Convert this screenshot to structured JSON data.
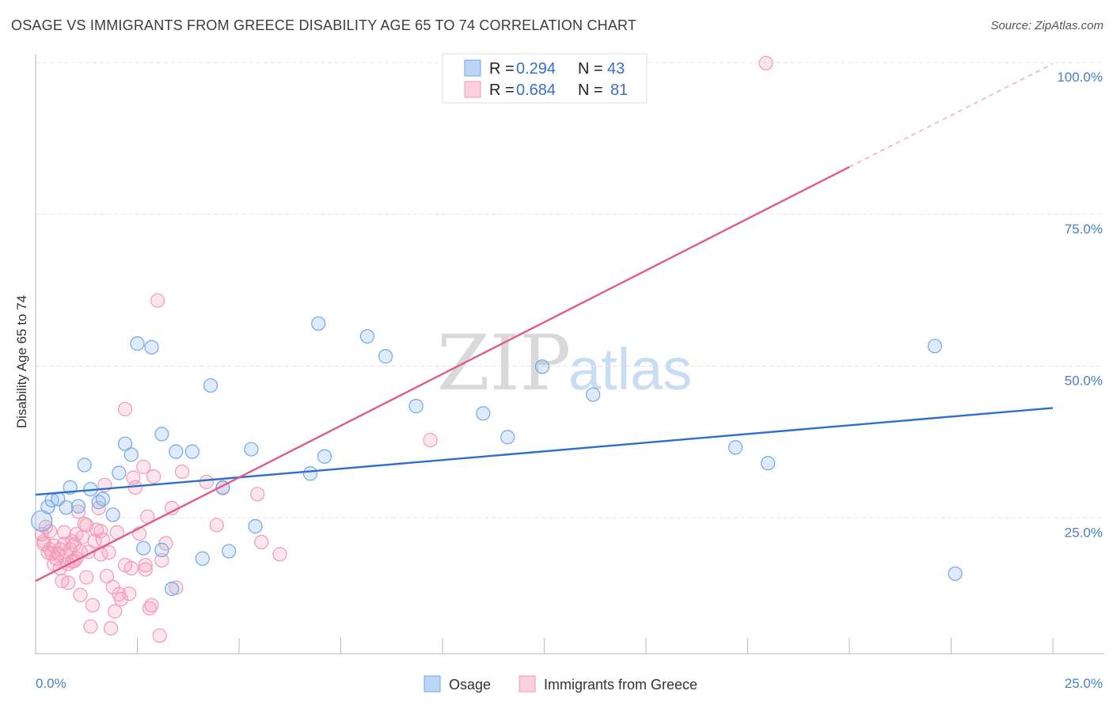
{
  "header": {
    "title": "OSAGE VS IMMIGRANTS FROM GREECE DISABILITY AGE 65 TO 74 CORRELATION CHART",
    "source": "Source: ZipAtlas.com"
  },
  "watermark": {
    "zip": "ZIP",
    "atlas": "atlas"
  },
  "stats": [
    {
      "r_label": "R =",
      "r_value": "0.294",
      "n_label": "N =",
      "n_value": "43"
    },
    {
      "r_label": "R =",
      "r_value": "0.684",
      "n_label": "N =",
      "n_value": "81"
    }
  ],
  "chart_data": {
    "type": "scatter",
    "title": "OSAGE VS IMMIGRANTS FROM GREECE DISABILITY AGE 65 TO 74 CORRELATION CHART",
    "xlabel": "",
    "ylabel": "Disability Age 65 to 74",
    "xlim": [
      0,
      25
    ],
    "ylim": [
      0,
      100
    ],
    "x_tick_labels": [
      "0.0%",
      "25.0%"
    ],
    "y_tick_labels": [
      "25.0%",
      "50.0%",
      "75.0%",
      "100.0%"
    ],
    "y_ticks": [
      25,
      50,
      75,
      100
    ],
    "grid": true,
    "legend_position": "bottom",
    "colors": {
      "osage": "#6fa8e8",
      "greece": "#f19bb7",
      "osage_line": "#2f6fca",
      "greece_line": "#e05a87",
      "tick": "#4a7fc1"
    },
    "series": [
      {
        "name": "Osage",
        "r": 0.294,
        "n": 43,
        "trend": {
          "x": [
            0,
            25
          ],
          "y": [
            28.8,
            43.1
          ]
        },
        "points": [
          [
            0.15,
            24.5
          ],
          [
            0.3,
            26.8
          ],
          [
            0.4,
            27.9
          ],
          [
            0.55,
            28.1
          ],
          [
            0.75,
            26.7
          ],
          [
            0.85,
            30.0
          ],
          [
            1.05,
            26.9
          ],
          [
            1.2,
            33.7
          ],
          [
            1.35,
            29.7
          ],
          [
            1.55,
            27.6
          ],
          [
            1.65,
            28.1
          ],
          [
            1.9,
            25.5
          ],
          [
            2.05,
            32.4
          ],
          [
            2.2,
            37.2
          ],
          [
            2.35,
            35.4
          ],
          [
            2.5,
            53.7
          ],
          [
            2.65,
            20.0
          ],
          [
            2.85,
            53.1
          ],
          [
            3.1,
            38.8
          ],
          [
            3.1,
            19.7
          ],
          [
            3.35,
            13.3
          ],
          [
            3.45,
            35.9
          ],
          [
            3.85,
            35.9
          ],
          [
            4.1,
            18.3
          ],
          [
            4.3,
            46.8
          ],
          [
            4.6,
            30.0
          ],
          [
            4.75,
            19.5
          ],
          [
            5.3,
            36.3
          ],
          [
            5.4,
            23.6
          ],
          [
            6.75,
            32.3
          ],
          [
            6.95,
            57.0
          ],
          [
            7.1,
            35.1
          ],
          [
            8.15,
            54.9
          ],
          [
            8.6,
            51.6
          ],
          [
            9.35,
            43.4
          ],
          [
            11.0,
            42.2
          ],
          [
            11.6,
            38.3
          ],
          [
            12.45,
            49.9
          ],
          [
            13.7,
            45.3
          ],
          [
            17.2,
            36.6
          ],
          [
            18.0,
            34.0
          ],
          [
            22.1,
            53.3
          ],
          [
            22.6,
            15.8
          ]
        ]
      },
      {
        "name": "Immigrants from Greece",
        "r": 0.684,
        "n": 81,
        "trend": {
          "x": [
            0,
            20
          ],
          "y": [
            14.6,
            82.8
          ]
        },
        "trend_dashed": {
          "x": [
            20,
            25
          ],
          "y": [
            82.8,
            99.8
          ]
        },
        "points": [
          [
            0.15,
            22.3
          ],
          [
            0.2,
            21.1
          ],
          [
            0.2,
            20.7
          ],
          [
            0.25,
            23.5
          ],
          [
            0.3,
            19.3
          ],
          [
            0.35,
            22.8
          ],
          [
            0.35,
            19.8
          ],
          [
            0.4,
            19.1
          ],
          [
            0.45,
            20.4
          ],
          [
            0.5,
            18.3
          ],
          [
            0.55,
            19.1
          ],
          [
            0.6,
            19.8
          ],
          [
            0.6,
            16.7
          ],
          [
            0.65,
            14.6
          ],
          [
            0.7,
            20.7
          ],
          [
            0.7,
            22.6
          ],
          [
            0.75,
            18.9
          ],
          [
            0.8,
            17.4
          ],
          [
            0.85,
            19.8
          ],
          [
            0.9,
            17.8
          ],
          [
            0.9,
            21.1
          ],
          [
            0.95,
            20.6
          ],
          [
            1.0,
            18.3
          ],
          [
            1.0,
            22.3
          ],
          [
            1.05,
            26.0
          ],
          [
            1.1,
            19.4
          ],
          [
            1.1,
            12.3
          ],
          [
            1.15,
            21.8
          ],
          [
            1.2,
            24.0
          ],
          [
            1.25,
            15.2
          ],
          [
            1.3,
            19.4
          ],
          [
            1.35,
            7.1
          ],
          [
            1.4,
            10.6
          ],
          [
            1.45,
            21.2
          ],
          [
            1.5,
            23.0
          ],
          [
            1.55,
            26.6
          ],
          [
            1.6,
            22.8
          ],
          [
            1.65,
            21.4
          ],
          [
            1.7,
            30.4
          ],
          [
            1.75,
            15.4
          ],
          [
            1.8,
            19.3
          ],
          [
            1.85,
            6.8
          ],
          [
            1.9,
            13.6
          ],
          [
            1.95,
            9.6
          ],
          [
            2.0,
            22.6
          ],
          [
            2.05,
            12.4
          ],
          [
            2.1,
            11.6
          ],
          [
            2.2,
            17.2
          ],
          [
            2.2,
            42.9
          ],
          [
            2.35,
            16.7
          ],
          [
            2.4,
            31.6
          ],
          [
            2.45,
            30.0
          ],
          [
            2.55,
            22.4
          ],
          [
            2.65,
            33.4
          ],
          [
            2.7,
            17.2
          ],
          [
            2.7,
            16.5
          ],
          [
            2.75,
            25.2
          ],
          [
            2.8,
            10.1
          ],
          [
            2.85,
            10.6
          ],
          [
            2.9,
            31.8
          ],
          [
            3.0,
            60.8
          ],
          [
            3.05,
            5.6
          ],
          [
            3.2,
            20.8
          ],
          [
            3.35,
            26.6
          ],
          [
            3.45,
            13.5
          ],
          [
            3.6,
            32.6
          ],
          [
            4.2,
            30.9
          ],
          [
            4.45,
            23.8
          ],
          [
            4.6,
            29.9
          ],
          [
            5.45,
            28.9
          ],
          [
            5.55,
            21.0
          ],
          [
            6.0,
            19.0
          ],
          [
            9.7,
            37.8
          ],
          [
            17.95,
            99.9
          ],
          [
            0.95,
            17.9
          ],
          [
            1.25,
            23.8
          ],
          [
            0.45,
            17.4
          ],
          [
            1.6,
            19.0
          ],
          [
            0.8,
            14.3
          ],
          [
            2.3,
            12.5
          ],
          [
            3.1,
            18.0
          ]
        ]
      }
    ]
  }
}
